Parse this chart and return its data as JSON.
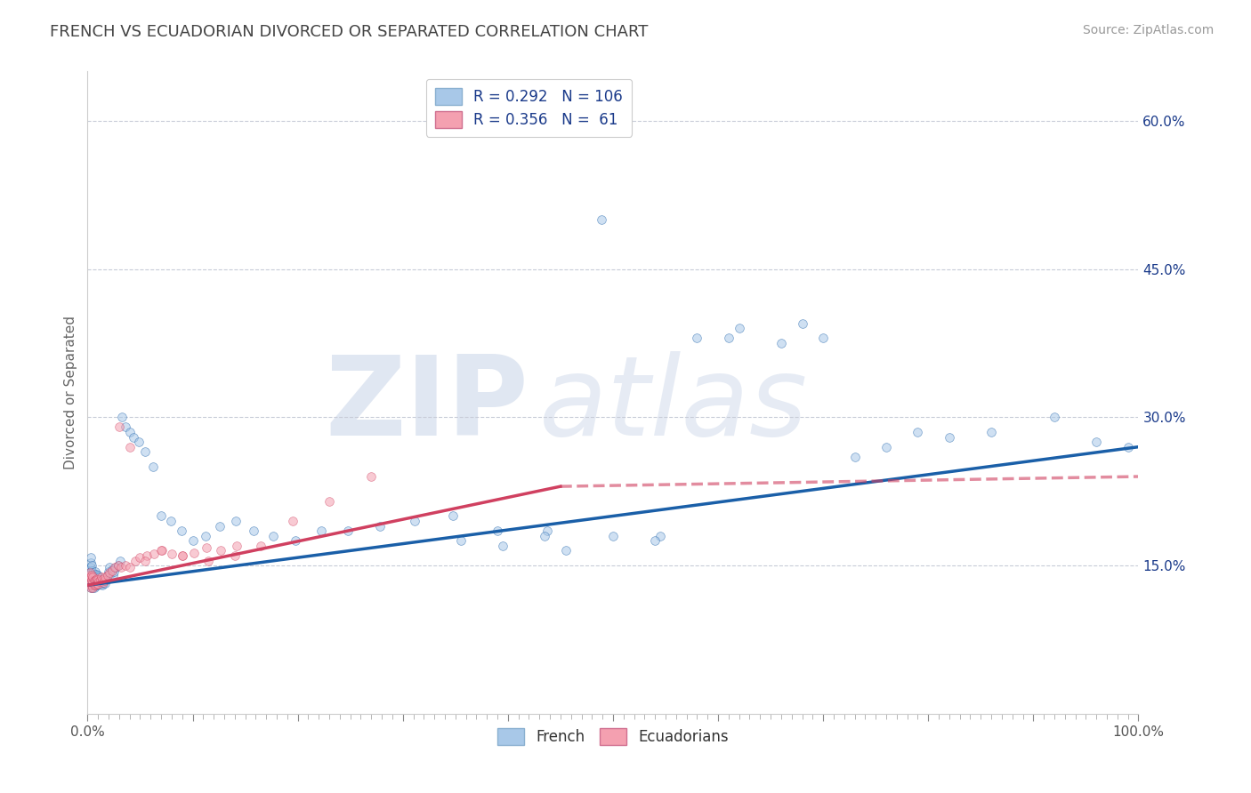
{
  "title": "FRENCH VS ECUADORIAN DIVORCED OR SEPARATED CORRELATION CHART",
  "source_text": "Source: ZipAtlas.com",
  "ylabel": "Divorced or Separated",
  "watermark_zip": "ZIP",
  "watermark_atlas": "atlas",
  "legend_french_R": "0.292",
  "legend_french_N": "106",
  "legend_ecua_R": "0.356",
  "legend_ecua_N": " 61",
  "french_color": "#a8c8e8",
  "ecua_color": "#f4a0b0",
  "french_line_color": "#1a5fa8",
  "ecua_line_color": "#d04060",
  "dashed_line_color": "#c08090",
  "legend_text_color": "#1a3a8a",
  "background_color": "#ffffff",
  "grid_color": "#c8ccd8",
  "xlim": [
    0.0,
    1.0
  ],
  "ylim": [
    0.0,
    0.65
  ],
  "yticks": [
    0.15,
    0.3,
    0.45,
    0.6
  ],
  "ytick_labels": [
    "15.0%",
    "30.0%",
    "45.0%",
    "60.0%"
  ],
  "xticks": [
    0.0,
    0.1,
    0.2,
    0.3,
    0.4,
    0.5,
    0.6,
    0.7,
    0.8,
    0.9,
    1.0
  ],
  "xtick_labels": [
    "0.0%",
    "",
    "",
    "",
    "",
    "",
    "",
    "",
    "",
    "",
    "100.0%"
  ],
  "french_x": [
    0.001,
    0.001,
    0.001,
    0.002,
    0.002,
    0.002,
    0.002,
    0.003,
    0.003,
    0.003,
    0.003,
    0.003,
    0.003,
    0.003,
    0.004,
    0.004,
    0.004,
    0.004,
    0.004,
    0.005,
    0.005,
    0.005,
    0.005,
    0.006,
    0.006,
    0.006,
    0.006,
    0.007,
    0.007,
    0.007,
    0.007,
    0.008,
    0.008,
    0.008,
    0.009,
    0.009,
    0.01,
    0.01,
    0.01,
    0.011,
    0.011,
    0.012,
    0.012,
    0.013,
    0.014,
    0.015,
    0.015,
    0.016,
    0.017,
    0.018,
    0.019,
    0.02,
    0.021,
    0.022,
    0.023,
    0.024,
    0.025,
    0.027,
    0.029,
    0.031,
    0.033,
    0.036,
    0.04,
    0.044,
    0.049,
    0.055,
    0.062,
    0.07,
    0.079,
    0.089,
    0.1,
    0.112,
    0.126,
    0.141,
    0.158,
    0.177,
    0.198,
    0.222,
    0.248,
    0.278,
    0.311,
    0.348,
    0.39,
    0.437,
    0.489,
    0.545,
    0.61,
    0.68,
    0.355,
    0.395,
    0.435,
    0.455,
    0.5,
    0.54,
    0.58,
    0.62,
    0.66,
    0.7,
    0.73,
    0.76,
    0.79,
    0.82,
    0.86,
    0.92,
    0.96,
    0.99
  ],
  "french_y": [
    0.135,
    0.14,
    0.145,
    0.13,
    0.138,
    0.143,
    0.148,
    0.128,
    0.133,
    0.138,
    0.143,
    0.148,
    0.153,
    0.158,
    0.13,
    0.135,
    0.14,
    0.145,
    0.15,
    0.128,
    0.133,
    0.138,
    0.143,
    0.128,
    0.132,
    0.136,
    0.141,
    0.129,
    0.134,
    0.139,
    0.144,
    0.131,
    0.136,
    0.141,
    0.133,
    0.138,
    0.13,
    0.135,
    0.14,
    0.133,
    0.138,
    0.131,
    0.136,
    0.134,
    0.13,
    0.132,
    0.137,
    0.135,
    0.132,
    0.136,
    0.14,
    0.144,
    0.148,
    0.142,
    0.146,
    0.14,
    0.144,
    0.148,
    0.15,
    0.155,
    0.3,
    0.29,
    0.285,
    0.28,
    0.275,
    0.265,
    0.25,
    0.2,
    0.195,
    0.185,
    0.175,
    0.18,
    0.19,
    0.195,
    0.185,
    0.18,
    0.175,
    0.185,
    0.185,
    0.19,
    0.195,
    0.2,
    0.185,
    0.185,
    0.5,
    0.18,
    0.38,
    0.395,
    0.175,
    0.17,
    0.18,
    0.165,
    0.18,
    0.175,
    0.38,
    0.39,
    0.375,
    0.38,
    0.26,
    0.27,
    0.285,
    0.28,
    0.285,
    0.3,
    0.275,
    0.27
  ],
  "ecua_x": [
    0.001,
    0.001,
    0.002,
    0.002,
    0.002,
    0.003,
    0.003,
    0.003,
    0.004,
    0.004,
    0.004,
    0.005,
    0.005,
    0.005,
    0.006,
    0.006,
    0.007,
    0.007,
    0.008,
    0.008,
    0.009,
    0.009,
    0.01,
    0.01,
    0.011,
    0.012,
    0.013,
    0.014,
    0.015,
    0.016,
    0.017,
    0.019,
    0.021,
    0.023,
    0.026,
    0.029,
    0.032,
    0.036,
    0.04,
    0.045,
    0.05,
    0.056,
    0.063,
    0.071,
    0.08,
    0.09,
    0.101,
    0.113,
    0.127,
    0.142,
    0.03,
    0.04,
    0.055,
    0.07,
    0.09,
    0.115,
    0.14,
    0.165,
    0.195,
    0.23,
    0.27
  ],
  "ecua_y": [
    0.135,
    0.14,
    0.13,
    0.138,
    0.143,
    0.128,
    0.133,
    0.138,
    0.13,
    0.135,
    0.14,
    0.128,
    0.133,
    0.138,
    0.13,
    0.135,
    0.13,
    0.135,
    0.131,
    0.136,
    0.132,
    0.137,
    0.131,
    0.136,
    0.134,
    0.136,
    0.138,
    0.136,
    0.133,
    0.135,
    0.138,
    0.14,
    0.143,
    0.145,
    0.148,
    0.15,
    0.148,
    0.15,
    0.148,
    0.155,
    0.158,
    0.16,
    0.162,
    0.165,
    0.162,
    0.16,
    0.163,
    0.168,
    0.165,
    0.17,
    0.29,
    0.27,
    0.155,
    0.165,
    0.16,
    0.155,
    0.16,
    0.17,
    0.195,
    0.215,
    0.24
  ],
  "french_trend_x": [
    0.0,
    1.0
  ],
  "french_trend_y": [
    0.13,
    0.27
  ],
  "ecua_trend_x": [
    0.0,
    0.45
  ],
  "ecua_trend_y": [
    0.13,
    0.23
  ],
  "dashed_trend_x": [
    0.45,
    1.0
  ],
  "dashed_trend_y": [
    0.23,
    0.24
  ],
  "title_fontsize": 13,
  "axis_label_fontsize": 11,
  "tick_fontsize": 11,
  "legend_fontsize": 12,
  "source_fontsize": 10,
  "marker_size": 7,
  "marker_alpha": 0.55,
  "line_width": 2.5
}
